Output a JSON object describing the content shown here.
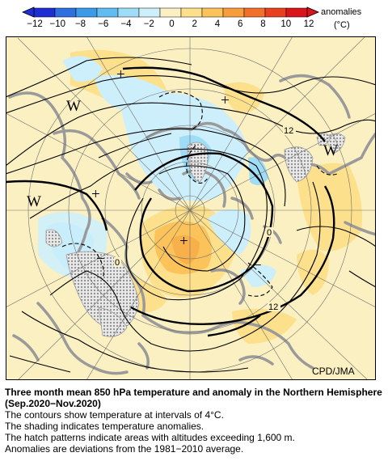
{
  "colorbar": {
    "ticks": [
      "−12",
      "−10",
      "−8",
      "−6",
      "−4",
      "−2",
      "0",
      "2",
      "4",
      "6",
      "8",
      "10",
      "12"
    ],
    "unit_label": "anomalies",
    "unit": "(°C)",
    "colors": [
      "#1e2ed2",
      "#2f6fe0",
      "#3c9be8",
      "#63bcf0",
      "#9fdcf7",
      "#cdeffb",
      "#fbf0c2",
      "#fde08c",
      "#fbc35a",
      "#f89d3c",
      "#f2702a",
      "#e8401f",
      "#d9141b"
    ]
  },
  "map": {
    "labels": {
      "w_left": "W",
      "w_left2": "W",
      "w_right": "W",
      "plus_top": "+",
      "plus_upper": "+",
      "plus_left": "+",
      "plus_center": "+",
      "minus_left": "−",
      "minus_right": "−",
      "c12_upper": "12",
      "c0_right": "0",
      "c0_left": "0",
      "c12_lower": "12"
    },
    "colors": {
      "land": "#9a9a9a",
      "warm_light": "#fbf0c2",
      "warm_mid": "#fde08c",
      "warm_strong": "#fbc35a",
      "warm_max": "#f89d3c",
      "cool_light": "#cdeffb",
      "cool_mid": "#9fdcf7"
    },
    "credit": "CPD/JMA"
  },
  "caption": {
    "title": "Three month mean 850 hPa temperature and anomaly in the Northern Hemisphere (Sep.2020−Nov.2020)",
    "lines": [
      "The contours show temperature at intervals of 4°C.",
      "The shading indicates temperature anomalies.",
      "The hatch patterns indicate areas with altitudes exceeding 1,600 m.",
      "Anomalies are deviations from the 1981−2010 average."
    ]
  }
}
